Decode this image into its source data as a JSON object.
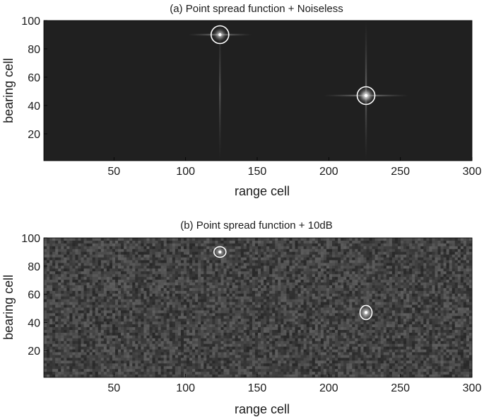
{
  "chart_data": [
    {
      "type": "heatmap",
      "title": "(a) Point spread function + Noiseless",
      "xlabel": "range cell",
      "ylabel": "bearing cell",
      "xlim": [
        1,
        300
      ],
      "ylim": [
        1,
        100
      ],
      "xticks": [
        "50",
        "100",
        "150",
        "200",
        "250",
        "300"
      ],
      "yticks": [
        "20",
        "40",
        "60",
        "80",
        "100"
      ],
      "noise": "none",
      "targets": [
        {
          "x": 124,
          "y": 90,
          "intensity": 0.75,
          "circled": true
        },
        {
          "x": 226,
          "y": 47,
          "intensity": 1.0,
          "circled": true
        }
      ],
      "colors": {
        "background": "#202020",
        "marker": "#ffffff"
      }
    },
    {
      "type": "heatmap",
      "title": "(b) Point spread function + 10dB",
      "xlabel": "range cell",
      "ylabel": "bearing cell",
      "xlim": [
        1,
        300
      ],
      "ylim": [
        1,
        100
      ],
      "xticks": [
        "50",
        "100",
        "150",
        "200",
        "250",
        "300"
      ],
      "yticks": [
        "20",
        "40",
        "60",
        "80",
        "100"
      ],
      "noise": "10dB",
      "targets": [
        {
          "x": 124,
          "y": 90,
          "intensity": 0.55,
          "circled": true
        },
        {
          "x": 226,
          "y": 47,
          "intensity": 0.85,
          "circled": true
        }
      ],
      "colors": {
        "background": "#3a3a3a",
        "marker": "#ffffff"
      }
    }
  ]
}
